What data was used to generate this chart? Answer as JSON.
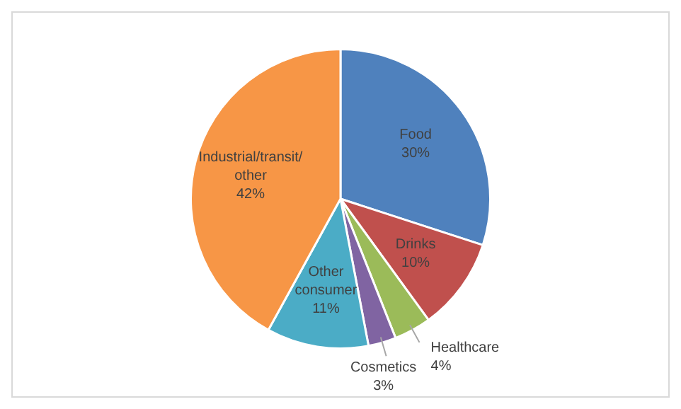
{
  "chart_data": {
    "type": "pie",
    "categories": [
      "Food",
      "Drinks",
      "Healthcare",
      "Cosmetics",
      "Other consumer",
      "Industrial/transit/other"
    ],
    "values": [
      30,
      10,
      4,
      3,
      11,
      42
    ],
    "colors": [
      "#4f81bd",
      "#c0504d",
      "#9bbb59",
      "#8064a2",
      "#4bacc6",
      "#f79646"
    ],
    "value_labels": [
      "30%",
      "10%",
      "4%",
      "3%",
      "11%",
      "42%"
    ],
    "legend": false
  }
}
